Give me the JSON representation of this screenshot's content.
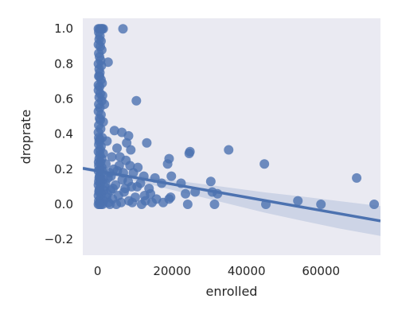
{
  "chart_data": {
    "type": "scatter",
    "xlabel": "enrolled",
    "ylabel": "droprate",
    "xlim": [
      -4000,
      76000
    ],
    "ylim": [
      -0.29,
      1.06
    ],
    "grid": false,
    "background": "#EAEAF2",
    "colors": {
      "points": "#4C72B0",
      "line": "#4C72B0",
      "band": "#4C72B0"
    },
    "xticks": [
      0,
      20000,
      40000,
      60000
    ],
    "xtick_labels": [
      "0",
      "20000",
      "40000",
      "60000"
    ],
    "yticks": [
      -0.2,
      0.0,
      0.2,
      0.4,
      0.6,
      0.8,
      1.0
    ],
    "ytick_labels": [
      "−0.2",
      "0.0",
      "0.2",
      "0.4",
      "0.6",
      "0.8",
      "1.0"
    ],
    "regression": {
      "x_start": -4000,
      "y_start": 0.205,
      "x_end": 76000,
      "y_end": -0.095
    },
    "confidence_band": {
      "x": [
        -4000,
        5000,
        15000,
        25000,
        35000,
        45000,
        55000,
        65000,
        76000
      ],
      "upper": [
        0.215,
        0.182,
        0.152,
        0.124,
        0.096,
        0.068,
        0.044,
        0.018,
        -0.01
      ],
      "lower": [
        0.195,
        0.158,
        0.108,
        0.056,
        0.004,
        -0.048,
        -0.094,
        -0.138,
        -0.18
      ]
    },
    "points": [
      [
        200,
        1.0
      ],
      [
        500,
        1.0
      ],
      [
        800,
        1.0
      ],
      [
        1000,
        1.0
      ],
      [
        1200,
        1.0
      ],
      [
        1500,
        1.0
      ],
      [
        6800,
        1.0
      ],
      [
        300,
        0.98
      ],
      [
        600,
        0.96
      ],
      [
        400,
        0.94
      ],
      [
        900,
        0.93
      ],
      [
        200,
        0.91
      ],
      [
        700,
        0.9
      ],
      [
        1100,
        0.88
      ],
      [
        300,
        0.86
      ],
      [
        500,
        0.84
      ],
      [
        800,
        0.82
      ],
      [
        200,
        0.8
      ],
      [
        2800,
        0.81
      ],
      [
        1000,
        0.79
      ],
      [
        400,
        0.77
      ],
      [
        600,
        0.75
      ],
      [
        300,
        0.73
      ],
      [
        900,
        0.71
      ],
      [
        1200,
        0.69
      ],
      [
        500,
        0.67
      ],
      [
        200,
        0.65
      ],
      [
        700,
        0.63
      ],
      [
        400,
        0.61
      ],
      [
        1100,
        0.59
      ],
      [
        1800,
        0.57
      ],
      [
        10400,
        0.59
      ],
      [
        300,
        0.57
      ],
      [
        600,
        0.55
      ],
      [
        200,
        0.53
      ],
      [
        900,
        0.51
      ],
      [
        500,
        0.49
      ],
      [
        1500,
        0.47
      ],
      [
        300,
        0.45
      ],
      [
        800,
        0.43
      ],
      [
        4500,
        0.42
      ],
      [
        200,
        0.41
      ],
      [
        6500,
        0.41
      ],
      [
        8300,
        0.39
      ],
      [
        1200,
        0.38
      ],
      [
        600,
        0.37
      ],
      [
        400,
        0.36
      ],
      [
        2500,
        0.36
      ],
      [
        7800,
        0.35
      ],
      [
        13200,
        0.35
      ],
      [
        300,
        0.34
      ],
      [
        900,
        0.33
      ],
      [
        5200,
        0.32
      ],
      [
        8900,
        0.31
      ],
      [
        24800,
        0.3
      ],
      [
        24600,
        0.29
      ],
      [
        35200,
        0.31
      ],
      [
        200,
        0.3
      ],
      [
        1500,
        0.29
      ],
      [
        600,
        0.28
      ],
      [
        3800,
        0.27
      ],
      [
        19200,
        0.26
      ],
      [
        400,
        0.26
      ],
      [
        7600,
        0.25
      ],
      [
        800,
        0.24
      ],
      [
        18800,
        0.23
      ],
      [
        44800,
        0.23
      ],
      [
        2200,
        0.23
      ],
      [
        300,
        0.22
      ],
      [
        5800,
        0.22
      ],
      [
        10800,
        0.21
      ],
      [
        1100,
        0.21
      ],
      [
        600,
        0.2
      ],
      [
        4300,
        0.2
      ],
      [
        200,
        0.19
      ],
      [
        9600,
        0.18
      ],
      [
        3200,
        0.18
      ],
      [
        800,
        0.17
      ],
      [
        12400,
        0.16
      ],
      [
        19800,
        0.16
      ],
      [
        15400,
        0.15
      ],
      [
        500,
        0.16
      ],
      [
        2800,
        0.15
      ],
      [
        6600,
        0.14
      ],
      [
        69600,
        0.15
      ],
      [
        1400,
        0.14
      ],
      [
        300,
        0.13
      ],
      [
        30400,
        0.13
      ],
      [
        8200,
        0.13
      ],
      [
        17200,
        0.12
      ],
      [
        22400,
        0.12
      ],
      [
        11500,
        0.12
      ],
      [
        700,
        0.12
      ],
      [
        4800,
        0.11
      ],
      [
        200,
        0.11
      ],
      [
        1900,
        0.1
      ],
      [
        9100,
        0.1
      ],
      [
        13800,
        0.09
      ],
      [
        600,
        0.09
      ],
      [
        3500,
        0.08
      ],
      [
        26200,
        0.07
      ],
      [
        30800,
        0.07
      ],
      [
        32200,
        0.06
      ],
      [
        23600,
        0.06
      ],
      [
        14200,
        0.06
      ],
      [
        12600,
        0.05
      ],
      [
        400,
        0.08
      ],
      [
        7100,
        0.07
      ],
      [
        1000,
        0.06
      ],
      [
        5600,
        0.05
      ],
      [
        19600,
        0.04
      ],
      [
        200,
        0.05
      ],
      [
        2400,
        0.04
      ],
      [
        10100,
        0.04
      ],
      [
        15800,
        0.03
      ],
      [
        700,
        0.03
      ],
      [
        19200,
        0.03
      ],
      [
        4000,
        0.03
      ],
      [
        12800,
        0.02
      ],
      [
        300,
        0.02
      ],
      [
        53800,
        0.02
      ],
      [
        8400,
        0.02
      ],
      [
        1600,
        0.02
      ],
      [
        600,
        0.01
      ],
      [
        31400,
        0.0
      ],
      [
        24200,
        0.0
      ],
      [
        45200,
        0.0
      ],
      [
        60000,
        0.0
      ],
      [
        74300,
        0.0
      ],
      [
        11800,
        0.0
      ],
      [
        6300,
        0.01
      ],
      [
        2900,
        0.01
      ],
      [
        200,
        0.0
      ],
      [
        900,
        0.0
      ],
      [
        1300,
        0.0
      ],
      [
        500,
        0.0
      ],
      [
        3300,
        0.0
      ],
      [
        14600,
        0.01
      ],
      [
        9300,
        0.01
      ],
      [
        5000,
        0.0
      ],
      [
        17600,
        0.01
      ],
      [
        400,
        0.15
      ],
      [
        1100,
        0.26
      ],
      [
        300,
        0.38
      ],
      [
        700,
        0.48
      ],
      [
        200,
        0.68
      ],
      [
        500,
        0.73
      ],
      [
        1300,
        0.62
      ],
      [
        350,
        0.07
      ],
      [
        750,
        0.14
      ],
      [
        1250,
        0.19
      ],
      [
        250,
        0.24
      ],
      [
        650,
        0.31
      ],
      [
        1600,
        0.08
      ],
      [
        2100,
        0.12
      ],
      [
        2600,
        0.06
      ],
      [
        3600,
        0.16
      ],
      [
        4100,
        0.09
      ],
      [
        5300,
        0.19
      ],
      [
        6000,
        0.27
      ],
      [
        6900,
        0.18
      ],
      [
        7400,
        0.09
      ],
      [
        8700,
        0.22
      ],
      [
        10600,
        0.1
      ]
    ]
  }
}
